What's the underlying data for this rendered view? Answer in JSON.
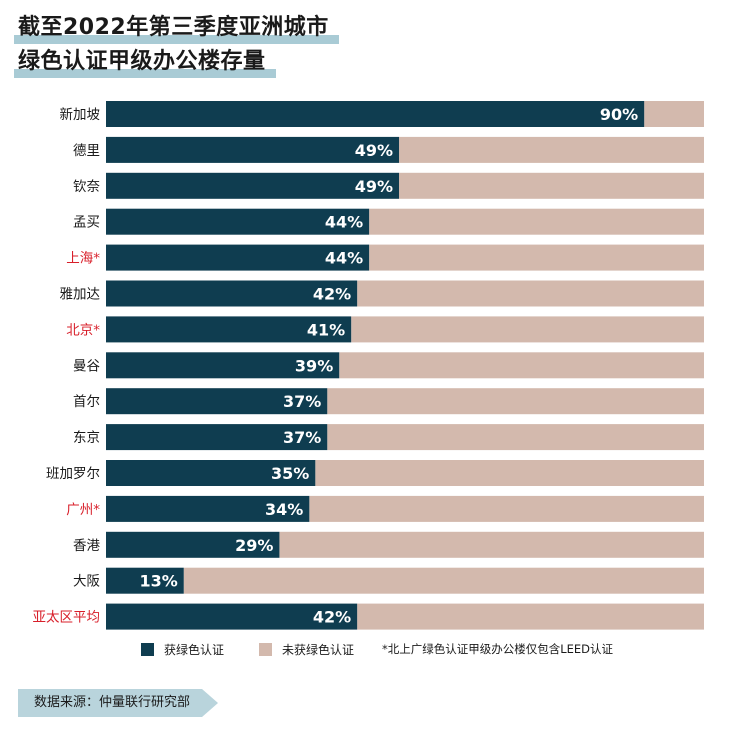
{
  "title_line1": "截至2022年第三季度亚洲城市",
  "title_line2": "绿色认证甲级办公楼存量",
  "legend": {
    "certified": "获绿色认证",
    "uncertified": "未获绿色认证",
    "note": "*北上广绿色认证甲级办公楼仅包含LEED认证"
  },
  "source": "数据来源：仲量联行研究部",
  "colors": {
    "certified": "#0f3d50",
    "uncertified": "#d3b9ad",
    "highlight_label": "#d81f2a",
    "label": "#1a1a1a"
  },
  "chart_data": {
    "type": "bar",
    "orientation": "horizontal",
    "stacked": true,
    "categories": [
      "新加坡",
      "德里",
      "钦奈",
      "孟买",
      "上海*",
      "雅加达",
      "北京*",
      "曼谷",
      "首尔",
      "东京",
      "班加罗尔",
      "广州*",
      "香港",
      "大阪",
      "亚太区平均"
    ],
    "highlighted": [
      "上海*",
      "北京*",
      "广州*",
      "亚太区平均"
    ],
    "series": [
      {
        "name": "获绿色认证",
        "values": [
          90,
          49,
          49,
          44,
          44,
          42,
          41,
          39,
          37,
          37,
          35,
          34,
          29,
          13,
          42
        ]
      },
      {
        "name": "未获绿色认证",
        "values": [
          10,
          51,
          51,
          56,
          56,
          58,
          59,
          61,
          63,
          63,
          65,
          66,
          71,
          87,
          58
        ]
      }
    ],
    "data_labels": [
      "90%",
      "49%",
      "49%",
      "44%",
      "44%",
      "42%",
      "41%",
      "39%",
      "37%",
      "37%",
      "35%",
      "34%",
      "29%",
      "13%",
      "42%"
    ],
    "xlim": [
      0,
      100
    ],
    "legend_position": "bottom"
  }
}
